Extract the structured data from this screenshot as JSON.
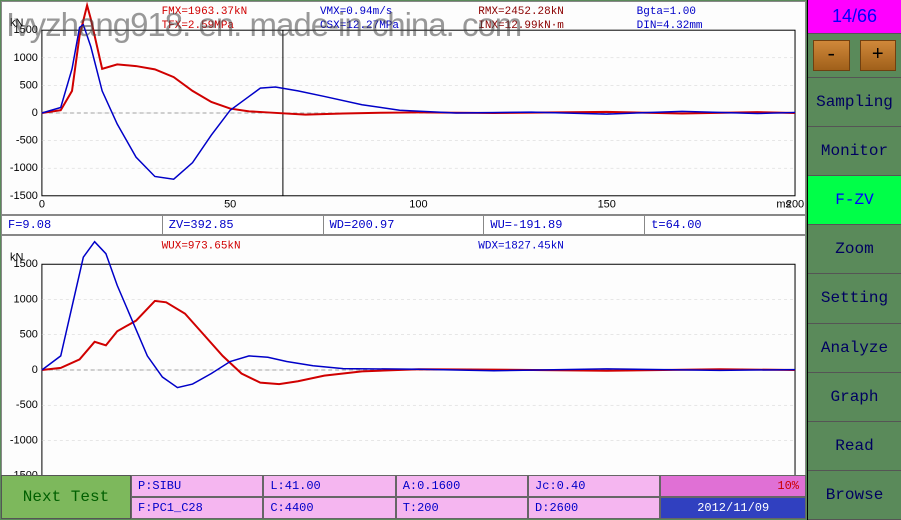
{
  "watermark": "Ivyzhang918. en. made-in-china. com",
  "counter": "14/66",
  "pm": {
    "minus": "-",
    "plus": "+"
  },
  "side_buttons": [
    {
      "label": "Sampling",
      "active": false
    },
    {
      "label": "Monitor",
      "active": false
    },
    {
      "label": "F-ZV",
      "active": true
    },
    {
      "label": "Zoom",
      "active": false
    },
    {
      "label": "Setting",
      "active": false
    },
    {
      "label": "Analyze",
      "active": false
    },
    {
      "label": "Graph",
      "active": false
    },
    {
      "label": "Read",
      "active": false
    },
    {
      "label": "Browse",
      "active": false
    }
  ],
  "next_test_label": "Next Test",
  "panel1": {
    "ylabel": "kN",
    "ylim": [
      -1500,
      1500
    ],
    "ytick_step": 500,
    "xlim": [
      0,
      200
    ],
    "xtick_step": 50,
    "xunit": "ms",
    "grid_color": "#cfcfcf",
    "cursor_x": 64,
    "annotations": [
      {
        "text": "FMX=1963.37kN",
        "color": "red"
      },
      {
        "text": "VMX=0.94m/s",
        "color": "blue"
      },
      {
        "text": "RMX=2452.28kN",
        "color": "darkred"
      },
      {
        "text": "Bgta=1.00",
        "color": "blue"
      },
      {
        "text": "TFX=2.59MPa",
        "color": "red"
      },
      {
        "text": "CSX=12.27MPa",
        "color": "blue"
      },
      {
        "text": "INX=12.99kN·m",
        "color": "darkred"
      },
      {
        "text": "DIN=4.32mm",
        "color": "blue"
      }
    ],
    "readouts": {
      "F": "F=9.08",
      "ZV": "ZV=392.85",
      "WD": "WD=200.97",
      "WU": "WU=-191.89",
      "t": "t=64.00"
    },
    "series": [
      {
        "color": "#d00000",
        "width": 2,
        "points": [
          [
            0,
            0
          ],
          [
            5,
            50
          ],
          [
            8,
            400
          ],
          [
            10,
            1400
          ],
          [
            12,
            1950
          ],
          [
            13,
            1700
          ],
          [
            16,
            800
          ],
          [
            20,
            880
          ],
          [
            25,
            850
          ],
          [
            30,
            790
          ],
          [
            35,
            650
          ],
          [
            40,
            400
          ],
          [
            45,
            200
          ],
          [
            50,
            80
          ],
          [
            55,
            30
          ],
          [
            60,
            10
          ],
          [
            70,
            -30
          ],
          [
            80,
            -10
          ],
          [
            90,
            5
          ],
          [
            100,
            10
          ],
          [
            120,
            0
          ],
          [
            150,
            20
          ],
          [
            170,
            -10
          ],
          [
            190,
            15
          ],
          [
            200,
            0
          ]
        ]
      },
      {
        "color": "#0000c8",
        "width": 1.5,
        "points": [
          [
            0,
            0
          ],
          [
            5,
            100
          ],
          [
            8,
            800
          ],
          [
            10,
            1550
          ],
          [
            11,
            1600
          ],
          [
            13,
            1200
          ],
          [
            16,
            400
          ],
          [
            20,
            -200
          ],
          [
            25,
            -800
          ],
          [
            30,
            -1150
          ],
          [
            35,
            -1200
          ],
          [
            40,
            -900
          ],
          [
            45,
            -400
          ],
          [
            50,
            50
          ],
          [
            55,
            300
          ],
          [
            58,
            450
          ],
          [
            62,
            470
          ],
          [
            68,
            400
          ],
          [
            75,
            300
          ],
          [
            85,
            150
          ],
          [
            95,
            50
          ],
          [
            110,
            0
          ],
          [
            130,
            15
          ],
          [
            150,
            -20
          ],
          [
            170,
            30
          ],
          [
            190,
            -10
          ],
          [
            200,
            10
          ]
        ]
      }
    ]
  },
  "panel2": {
    "ylabel": "kN",
    "ylim": [
      -1500,
      1500
    ],
    "ytick_step": 500,
    "xlim": [
      0,
      200
    ],
    "xtick_step": 50,
    "xunit": "ms",
    "grid_color": "#cfcfcf",
    "annotations": [
      {
        "text": "WUX=973.65kN",
        "color": "red"
      },
      {
        "text": "WDX=1827.45kN",
        "color": "blue"
      }
    ],
    "series": [
      {
        "color": "#d00000",
        "width": 2,
        "points": [
          [
            0,
            0
          ],
          [
            5,
            30
          ],
          [
            10,
            150
          ],
          [
            14,
            400
          ],
          [
            17,
            350
          ],
          [
            20,
            550
          ],
          [
            25,
            700
          ],
          [
            30,
            980
          ],
          [
            33,
            960
          ],
          [
            38,
            800
          ],
          [
            43,
            500
          ],
          [
            48,
            200
          ],
          [
            53,
            -50
          ],
          [
            58,
            -180
          ],
          [
            63,
            -200
          ],
          [
            68,
            -160
          ],
          [
            75,
            -80
          ],
          [
            85,
            -20
          ],
          [
            100,
            10
          ],
          [
            120,
            5
          ],
          [
            150,
            -10
          ],
          [
            180,
            10
          ],
          [
            200,
            0
          ]
        ]
      },
      {
        "color": "#0000c8",
        "width": 1.5,
        "points": [
          [
            0,
            0
          ],
          [
            5,
            200
          ],
          [
            8,
            900
          ],
          [
            11,
            1600
          ],
          [
            14,
            1820
          ],
          [
            17,
            1650
          ],
          [
            20,
            1200
          ],
          [
            24,
            700
          ],
          [
            28,
            200
          ],
          [
            32,
            -100
          ],
          [
            36,
            -250
          ],
          [
            40,
            -200
          ],
          [
            45,
            -50
          ],
          [
            50,
            120
          ],
          [
            55,
            200
          ],
          [
            60,
            180
          ],
          [
            65,
            120
          ],
          [
            72,
            60
          ],
          [
            80,
            20
          ],
          [
            100,
            10
          ],
          [
            120,
            -10
          ],
          [
            150,
            15
          ],
          [
            180,
            -5
          ],
          [
            200,
            5
          ]
        ]
      }
    ]
  },
  "info_grid": {
    "row1": [
      "P:SIBU",
      "L:41.00",
      "A:0.1600",
      "Jc:0.40"
    ],
    "row2": [
      "F:PC1_C28",
      "C:4400",
      "T:200",
      "D:2600"
    ],
    "progress": "10%",
    "date": "2012/11/09"
  }
}
